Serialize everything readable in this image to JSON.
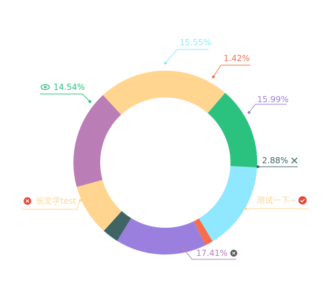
{
  "chart_data": {
    "type": "pie",
    "donut": true,
    "slices": [
      {
        "value": 15.55,
        "label": "15.55%",
        "color": "#8FE8FF",
        "badge": ""
      },
      {
        "value": 1.42,
        "label": "1.42%",
        "color": "#F86E4A",
        "badge": ""
      },
      {
        "value": 15.99,
        "label": "15.99%",
        "color": "#9A7FDF",
        "badge": ""
      },
      {
        "value": 2.88,
        "label": "2.88%",
        "color": "#3E6464",
        "badge": "close-icon"
      },
      {
        "value": 9.06,
        "label": "测试一下~",
        "color": "#FFD590",
        "badge": "check-icon"
      },
      {
        "value": 17.41,
        "label": "17.41%",
        "color": "#BA7DB6",
        "badge": "close-circle-icon"
      },
      {
        "value": 23.15,
        "label": "长文字test",
        "color": "#FFD590",
        "badge": "close-circle-icon"
      },
      {
        "value": 14.54,
        "label": "14.54%",
        "color": "#2BC17F",
        "badge": "eye-icon"
      }
    ]
  }
}
